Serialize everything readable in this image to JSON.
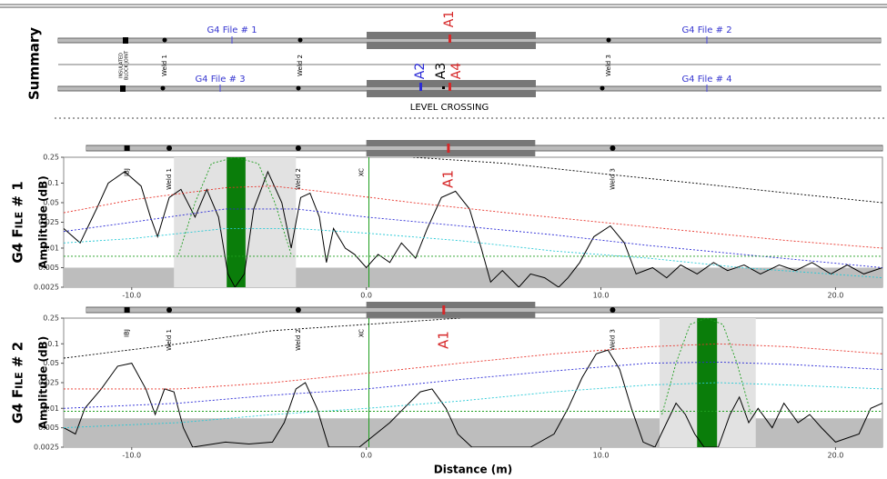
{
  "summary": {
    "title": "Summary",
    "files": [
      "G4 File # 1",
      "G4 File # 2",
      "G4 File # 3",
      "G4 File # 4"
    ],
    "block_joint": [
      "INSULATED",
      "BLOCK JOINT"
    ],
    "welds": [
      "Weld 1",
      "Weld 2",
      "Weld 3"
    ],
    "alarms": [
      "A1",
      "A2",
      "A3",
      "A4"
    ],
    "level_crossing": "LEVEL CROSSING"
  },
  "chart_data": [
    {
      "type": "line",
      "title": "G4 File # 1",
      "ylabel": "Amplitude (dB)",
      "log_y": true,
      "xlim": [
        -12.9,
        22
      ],
      "ylim": [
        0.0025,
        0.25
      ],
      "xticks": [
        {
          "value": -10,
          "label": "-10.0"
        },
        {
          "value": 0,
          "label": "0.0"
        },
        {
          "value": 10,
          "label": "10.0"
        },
        {
          "value": 20,
          "label": "20.0"
        }
      ],
      "yticks": [
        0.0025,
        0.005,
        0.01,
        0.025,
        0.05,
        0.1,
        0.25
      ],
      "noise_floor": 0.005,
      "window": [
        -8.2,
        -3.0
      ],
      "peak": [
        -5.95,
        -5.15
      ],
      "level_crossing": [
        0,
        7.2
      ],
      "annotations": [
        {
          "label": "IBJ",
          "x": -10.2
        },
        {
          "label": "Weld 1",
          "x": -8.4
        },
        {
          "label": "Weld 2",
          "x": -2.9
        },
        {
          "label": "XC",
          "x": -0.2
        },
        {
          "label": "A1",
          "x": 3.5,
          "color": "#d62728"
        },
        {
          "label": "Weld 3",
          "x": 10.5
        }
      ],
      "series": [
        {
          "color": "#000000",
          "style": "solid",
          "x": [
            -12.9,
            -12.2,
            -11.5,
            -11,
            -10.3,
            -9.6,
            -9.2,
            -8.9,
            -8.4,
            -7.9,
            -7.3,
            -6.8,
            -6.3,
            -5.9,
            -5.6,
            -5.2,
            -4.8,
            -4.2,
            -3.6,
            -3.2,
            -2.8,
            -2.4,
            -2,
            -1.7,
            -1.4,
            -0.9,
            -0.5,
            0,
            0.5,
            1,
            1.5,
            2.1,
            2.6,
            3.2,
            3.8,
            4.4,
            4.9,
            5.3,
            5.8,
            6.5,
            7,
            7.6,
            8.2,
            8.6,
            9.1,
            9.7,
            10.4,
            11,
            11.5,
            12.2,
            12.8,
            13.4,
            14.1,
            14.8,
            15.4,
            16.1,
            16.8,
            17.6,
            18.3,
            19,
            19.8,
            20.5,
            21.2,
            22
          ],
          "values": [
            0.02,
            0.012,
            0.04,
            0.1,
            0.15,
            0.09,
            0.03,
            0.015,
            0.06,
            0.08,
            0.03,
            0.08,
            0.03,
            0.004,
            0.0025,
            0.004,
            0.04,
            0.15,
            0.05,
            0.01,
            0.06,
            0.07,
            0.03,
            0.006,
            0.02,
            0.01,
            0.008,
            0.005,
            0.008,
            0.006,
            0.012,
            0.007,
            0.02,
            0.06,
            0.075,
            0.04,
            0.01,
            0.003,
            0.0045,
            0.0025,
            0.004,
            0.0035,
            0.0025,
            0.0035,
            0.006,
            0.015,
            0.022,
            0.012,
            0.004,
            0.005,
            0.0035,
            0.0055,
            0.004,
            0.006,
            0.0045,
            0.0055,
            0.004,
            0.0055,
            0.0045,
            0.006,
            0.004,
            0.0055,
            0.004,
            0.005
          ]
        },
        {
          "color": "#e8332a",
          "style": "dashed",
          "x": [
            -12.9,
            -10,
            -6,
            -4,
            -2,
            2,
            6,
            10,
            14,
            18,
            22
          ],
          "values": [
            0.035,
            0.055,
            0.085,
            0.09,
            0.075,
            0.05,
            0.035,
            0.025,
            0.018,
            0.013,
            0.01
          ]
        },
        {
          "color": "#2a2ad6",
          "style": "dashed",
          "x": [
            -12.9,
            -10,
            -6,
            -3,
            0,
            4,
            8,
            12,
            16,
            22
          ],
          "values": [
            0.018,
            0.025,
            0.04,
            0.04,
            0.03,
            0.022,
            0.016,
            0.011,
            0.008,
            0.005
          ]
        },
        {
          "color": "#27c9d6",
          "style": "dashed",
          "x": [
            -12.9,
            -10,
            -6,
            -3,
            0,
            4,
            8,
            12,
            16,
            22
          ],
          "values": [
            0.012,
            0.014,
            0.02,
            0.02,
            0.017,
            0.013,
            0.009,
            0.007,
            0.005,
            0.0035
          ]
        },
        {
          "color": "#1e9e1e",
          "style": "dashed",
          "x": [
            -12.9,
            22
          ],
          "values": [
            0.0075,
            0.0075
          ]
        },
        {
          "color": "#000000",
          "style": "dashed",
          "x": [
            2,
            6,
            10,
            14,
            18,
            22
          ],
          "values": [
            0.25,
            0.2,
            0.14,
            0.1,
            0.07,
            0.05
          ]
        },
        {
          "color": "#1e9e1e",
          "style": "dashed",
          "x": [
            -8,
            -7.3,
            -6.6,
            -5.6,
            -4.6,
            -3.9,
            -3.2
          ],
          "values": [
            0.008,
            0.05,
            0.2,
            0.25,
            0.2,
            0.05,
            0.008
          ]
        }
      ]
    },
    {
      "type": "line",
      "title": "G4 File # 2",
      "ylabel": "Amplitude (dB)",
      "xlabel": "Distance (m)",
      "log_y": true,
      "xlim": [
        -12.9,
        22
      ],
      "ylim": [
        0.0025,
        0.25
      ],
      "xticks": [
        {
          "value": -10,
          "label": "-10.0"
        },
        {
          "value": 0,
          "label": "0.0"
        },
        {
          "value": 10,
          "label": "10.0"
        },
        {
          "value": 20,
          "label": "20.0"
        }
      ],
      "yticks": [
        0.0025,
        0.005,
        0.01,
        0.025,
        0.05,
        0.1,
        0.25
      ],
      "noise_floor": 0.007,
      "window": [
        12.5,
        16.6
      ],
      "peak": [
        14.1,
        14.95
      ],
      "level_crossing": [
        0,
        7.2
      ],
      "annotations": [
        {
          "label": "IBJ",
          "x": -10.2
        },
        {
          "label": "Weld 1",
          "x": -8.4
        },
        {
          "label": "Weld 2",
          "x": -2.9
        },
        {
          "label": "XC",
          "x": -0.2
        },
        {
          "label": "A1",
          "x": 3.3,
          "color": "#d62728"
        },
        {
          "label": "Weld 3",
          "x": 10.5
        }
      ],
      "series": [
        {
          "color": "#000000",
          "style": "solid",
          "x": [
            -12.9,
            -12.4,
            -12,
            -11.3,
            -10.6,
            -10,
            -9.4,
            -9,
            -8.6,
            -8.2,
            -7.8,
            -7.4,
            -6,
            -5,
            -4,
            -3.5,
            -3,
            -2.6,
            -2.1,
            -1.6,
            -0.3,
            0.4,
            1,
            1.6,
            2.3,
            2.8,
            3.4,
            3.9,
            4.5,
            7,
            8,
            8.6,
            9.2,
            9.8,
            10.3,
            10.8,
            11.3,
            11.8,
            12.3,
            12.8,
            13.2,
            13.6,
            14,
            14.4,
            15,
            15.5,
            15.9,
            16.3,
            16.7,
            17.3,
            17.8,
            18.4,
            18.9,
            19.4,
            20,
            21,
            21.5,
            22
          ],
          "values": [
            0.005,
            0.004,
            0.01,
            0.02,
            0.045,
            0.05,
            0.02,
            0.008,
            0.02,
            0.018,
            0.005,
            0.0025,
            0.003,
            0.0028,
            0.003,
            0.006,
            0.02,
            0.025,
            0.01,
            0.0025,
            0.0025,
            0.004,
            0.006,
            0.01,
            0.018,
            0.02,
            0.01,
            0.004,
            0.0025,
            0.0025,
            0.004,
            0.01,
            0.03,
            0.07,
            0.08,
            0.04,
            0.01,
            0.003,
            0.0025,
            0.006,
            0.012,
            0.008,
            0.004,
            0.0025,
            0.0025,
            0.008,
            0.015,
            0.006,
            0.01,
            0.005,
            0.012,
            0.006,
            0.008,
            0.005,
            0.003,
            0.004,
            0.01,
            0.012
          ]
        },
        {
          "color": "#e8332a",
          "style": "dashed",
          "x": [
            -12.9,
            -8,
            -4,
            0,
            4,
            8,
            12,
            15,
            18,
            22
          ],
          "values": [
            0.02,
            0.02,
            0.025,
            0.035,
            0.05,
            0.07,
            0.09,
            0.1,
            0.09,
            0.07
          ]
        },
        {
          "color": "#2a2ad6",
          "style": "dashed",
          "x": [
            -12.9,
            -8,
            -4,
            0,
            4,
            8,
            12,
            15,
            18,
            22
          ],
          "values": [
            0.01,
            0.012,
            0.016,
            0.02,
            0.028,
            0.038,
            0.05,
            0.052,
            0.048,
            0.04
          ]
        },
        {
          "color": "#27c9d6",
          "style": "dashed",
          "x": [
            -12.9,
            -8,
            -4,
            0,
            4,
            8,
            12,
            15,
            18,
            22
          ],
          "values": [
            0.005,
            0.006,
            0.008,
            0.01,
            0.013,
            0.018,
            0.023,
            0.025,
            0.023,
            0.02
          ]
        },
        {
          "color": "#1e9e1e",
          "style": "dashed",
          "x": [
            -12.9,
            22
          ],
          "values": [
            0.009,
            0.009
          ]
        },
        {
          "color": "#000000",
          "style": "dashed",
          "x": [
            -12.9,
            -8,
            -4,
            0,
            4
          ],
          "values": [
            0.06,
            0.1,
            0.16,
            0.2,
            0.25
          ]
        },
        {
          "color": "#1e9e1e",
          "style": "dashed",
          "x": [
            12.6,
            13.2,
            13.8,
            14.5,
            15.2,
            15.8,
            16.4
          ],
          "values": [
            0.008,
            0.05,
            0.2,
            0.25,
            0.2,
            0.05,
            0.008
          ]
        }
      ]
    }
  ]
}
